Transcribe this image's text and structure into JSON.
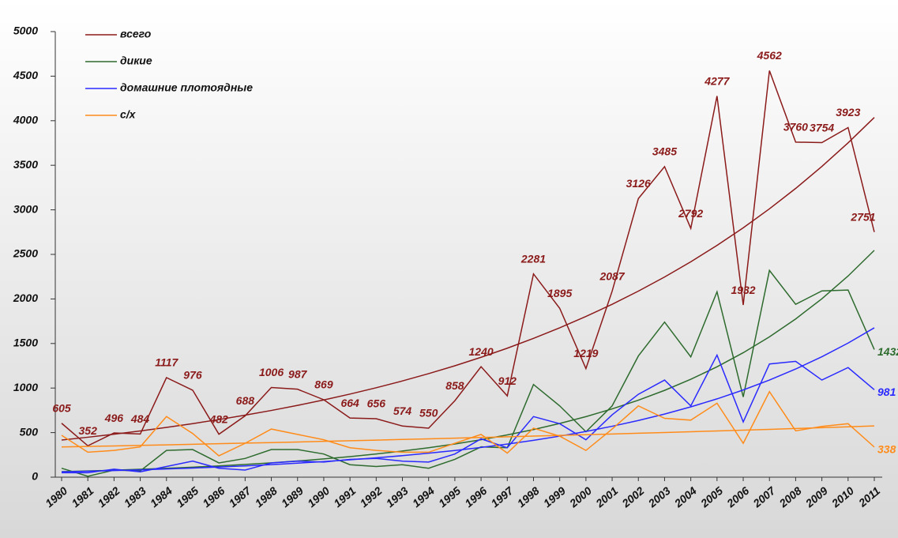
{
  "chart_data": {
    "type": "line",
    "categories": [
      "1980",
      "1981",
      "1982",
      "1983",
      "1984",
      "1985",
      "1986",
      "1987",
      "1988",
      "1989",
      "1990",
      "1991",
      "1992",
      "1993",
      "1994",
      "1995",
      "1996",
      "1997",
      "1998",
      "1999",
      "2000",
      "2001",
      "2002",
      "2003",
      "2004",
      "2005",
      "2006",
      "2007",
      "2008",
      "2009",
      "2010",
      "2011"
    ],
    "series": [
      {
        "name": "всего",
        "color": "#8b1a1a",
        "data_labels": "all",
        "values": [
          605,
          352,
          496,
          484,
          1117,
          976,
          482,
          688,
          1006,
          987,
          869,
          664,
          656,
          574,
          550,
          858,
          1240,
          912,
          2281,
          1895,
          1219,
          2087,
          3126,
          3485,
          2792,
          4277,
          1932,
          4562,
          3760,
          3754,
          3923,
          2751
        ]
      },
      {
        "name": "дикие",
        "color": "#2e6b2e",
        "data_labels": "last",
        "values": [
          100,
          10,
          80,
          70,
          300,
          310,
          160,
          210,
          310,
          310,
          260,
          140,
          120,
          140,
          100,
          200,
          340,
          330,
          1040,
          800,
          510,
          800,
          1360,
          1740,
          1350,
          2080,
          900,
          2320,
          1940,
          2090,
          2100,
          1432
        ]
      },
      {
        "name": "домашние плотоядные",
        "color": "#2a2aff",
        "data_labels": "last",
        "values": [
          50,
          50,
          90,
          60,
          120,
          180,
          100,
          80,
          160,
          180,
          170,
          200,
          210,
          180,
          170,
          260,
          430,
          330,
          680,
          600,
          420,
          700,
          930,
          1090,
          800,
          1370,
          620,
          1270,
          1300,
          1090,
          1230,
          981
        ]
      },
      {
        "name": "с/х",
        "color": "#ff8c1a",
        "data_labels": "last",
        "values": [
          470,
          280,
          300,
          340,
          680,
          490,
          240,
          380,
          540,
          480,
          420,
          330,
          300,
          280,
          280,
          380,
          480,
          270,
          550,
          460,
          300,
          540,
          800,
          660,
          640,
          830,
          380,
          960,
          520,
          570,
          600,
          338
        ]
      }
    ],
    "trendlines": true,
    "ylim": [
      0,
      5000
    ],
    "yticks": [
      0,
      500,
      1000,
      1500,
      2000,
      2500,
      3000,
      3500,
      4000,
      4500,
      5000
    ],
    "legend": "top-left",
    "grid": false
  }
}
